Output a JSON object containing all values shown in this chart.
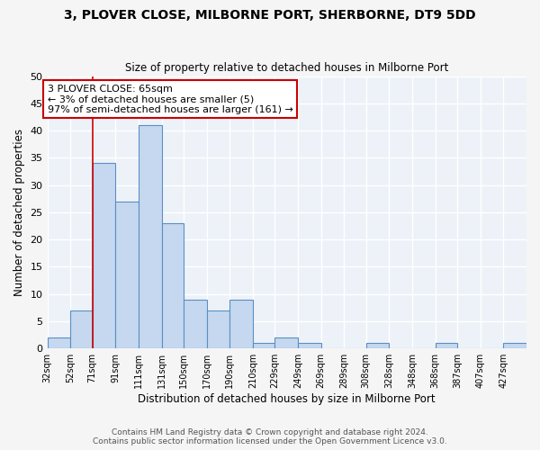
{
  "title": "3, PLOVER CLOSE, MILBORNE PORT, SHERBORNE, DT9 5DD",
  "subtitle": "Size of property relative to detached houses in Milborne Port",
  "xlabel": "Distribution of detached houses by size in Milborne Port",
  "ylabel": "Number of detached properties",
  "bar_values": [
    2,
    7,
    34,
    27,
    41,
    23,
    9,
    7,
    9,
    1,
    2,
    1,
    0,
    0,
    1,
    0,
    0,
    1,
    0,
    0,
    1
  ],
  "bin_edges": [
    32,
    52,
    71,
    91,
    111,
    131,
    150,
    170,
    190,
    210,
    229,
    249,
    269,
    289,
    308,
    328,
    348,
    368,
    387,
    407,
    427,
    447
  ],
  "tick_labels": [
    "32sqm",
    "52sqm",
    "71sqm",
    "91sqm",
    "111sqm",
    "131sqm",
    "150sqm",
    "170sqm",
    "190sqm",
    "210sqm",
    "229sqm",
    "249sqm",
    "269sqm",
    "289sqm",
    "308sqm",
    "328sqm",
    "348sqm",
    "368sqm",
    "387sqm",
    "407sqm",
    "427sqm"
  ],
  "bar_color": "#c5d8f0",
  "bar_edge_color": "#5a8fc2",
  "property_line_x": 71,
  "property_line_color": "#cc0000",
  "annotation_text": "3 PLOVER CLOSE: 65sqm\n← 3% of detached houses are smaller (5)\n97% of semi-detached houses are larger (161) →",
  "annotation_box_color": "#ffffff",
  "annotation_box_edge_color": "#cc0000",
  "ylim": [
    0,
    50
  ],
  "yticks": [
    0,
    5,
    10,
    15,
    20,
    25,
    30,
    35,
    40,
    45,
    50
  ],
  "bg_color": "#edf2f8",
  "grid_color": "#ffffff",
  "fig_bg_color": "#f5f5f5",
  "footnote1": "Contains HM Land Registry data © Crown copyright and database right 2024.",
  "footnote2": "Contains public sector information licensed under the Open Government Licence v3.0."
}
